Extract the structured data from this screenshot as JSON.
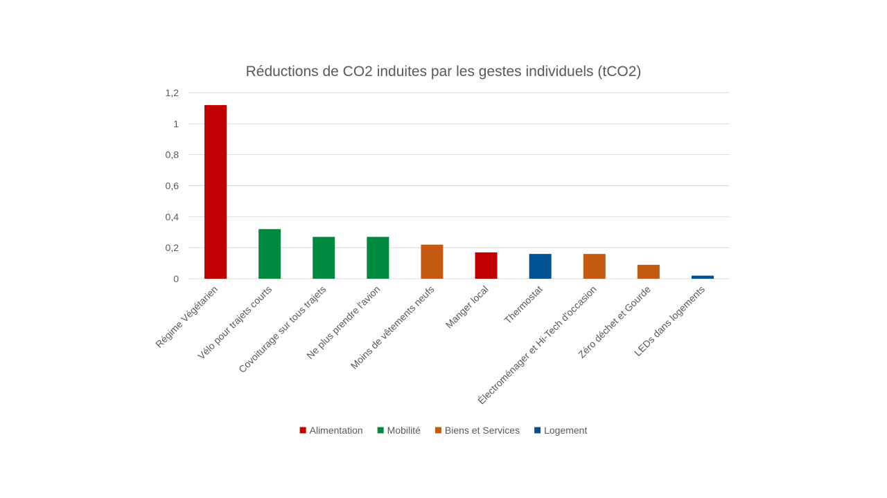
{
  "chart_data": {
    "type": "bar",
    "title": "Réductions de CO2 induites par les gestes individuels (tCO2)",
    "xlabel": "",
    "ylabel": "",
    "ylim": [
      0,
      1.2
    ],
    "yticks": [
      "0",
      "0,2",
      "0,4",
      "0,6",
      "0,8",
      "1",
      "1,2"
    ],
    "ytick_values": [
      0,
      0.2,
      0.4,
      0.6,
      0.8,
      1.0,
      1.2
    ],
    "grid": true,
    "legend_position": "bottom",
    "categories": [
      "Régime Végétarien",
      "Vélo pour trajets courts",
      "Covoiturage sur tous trajets",
      "Ne plus prendre l'avion",
      "Moins de vêtements neufs",
      "Manger local",
      "Thermostat",
      "Électroménager et Hi-Tech d'occasion",
      "Zéro déchet et Gourde",
      "LEDs dans logements"
    ],
    "values": [
      1.12,
      0.32,
      0.27,
      0.27,
      0.22,
      0.17,
      0.16,
      0.16,
      0.09,
      0.02
    ],
    "groups": [
      "Alimentation",
      "Mobilité",
      "Mobilité",
      "Mobilité",
      "Biens et Services",
      "Alimentation",
      "Logement",
      "Biens et Services",
      "Biens et Services",
      "Logement"
    ],
    "legend": [
      {
        "name": "Alimentation",
        "color": "#c00000"
      },
      {
        "name": "Mobilité",
        "color": "#00883e"
      },
      {
        "name": "Biens et Services",
        "color": "#c55a11"
      },
      {
        "name": "Logement",
        "color": "#005293"
      }
    ]
  }
}
